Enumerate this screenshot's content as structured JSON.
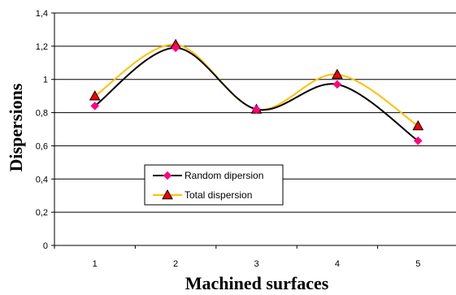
{
  "chart_data": {
    "type": "line",
    "x": [
      1,
      2,
      3,
      4,
      5
    ],
    "categories": [
      "1",
      "2",
      "3",
      "4",
      "5"
    ],
    "series": [
      {
        "name": "Random dipersion",
        "values": [
          0.84,
          1.19,
          0.82,
          0.97,
          0.63
        ],
        "color": "#000000",
        "marker_color": "#ff0080",
        "marker": "diamond"
      },
      {
        "name": "Total dispersion",
        "values": [
          0.9,
          1.21,
          0.82,
          1.03,
          0.72
        ],
        "color": "#ffc000",
        "marker_color": "#ff0000",
        "marker": "triangle"
      }
    ],
    "xlabel": "Machined surfaces",
    "ylabel": "Dispersions",
    "ylim": [
      0,
      1.4
    ],
    "yticks": [
      "0",
      "0,2",
      "0,4",
      "0,6",
      "0,8",
      "1",
      "1,2",
      "1,4"
    ],
    "grid": true,
    "legend_position": "bottom-left",
    "smooth": true
  }
}
